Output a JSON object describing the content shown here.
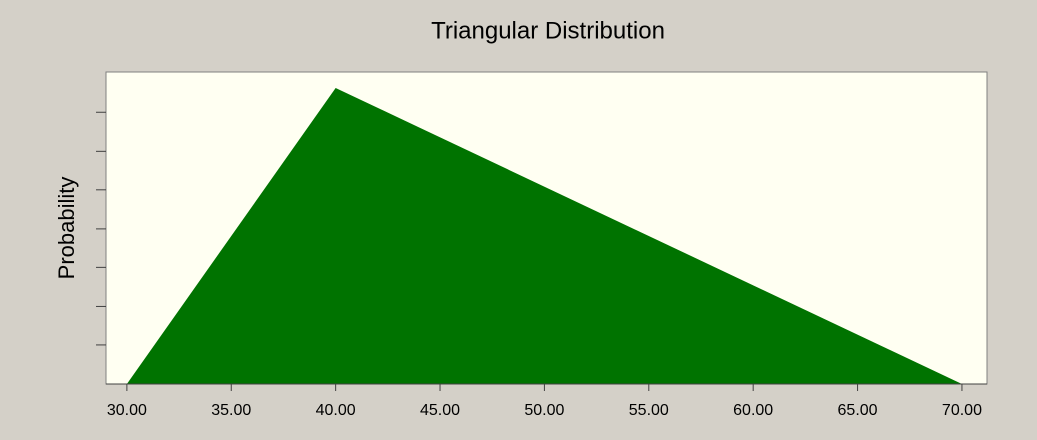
{
  "chart_data": {
    "type": "area",
    "title": "Triangular Distribution",
    "ylabel": "Probability",
    "x": [
      30,
      40,
      70
    ],
    "values": [
      0,
      0.05,
      0
    ],
    "color": "#007300",
    "xlim": [
      29,
      71.2
    ],
    "xticks": [
      {
        "value": 30,
        "label": "30.00"
      },
      {
        "value": 35,
        "label": "35.00"
      },
      {
        "value": 40,
        "label": "40.00"
      },
      {
        "value": 45,
        "label": "45.00"
      },
      {
        "value": 50,
        "label": "50.00"
      },
      {
        "value": 55,
        "label": "55.00"
      },
      {
        "value": 60,
        "label": "60.00"
      },
      {
        "value": 65,
        "label": "65.00"
      },
      {
        "value": 70,
        "label": "70.00"
      }
    ],
    "ylim": [
      0,
      0.0527
    ],
    "yticks": [
      0.0066,
      0.0131,
      0.0197,
      0.0262,
      0.0328,
      0.0393,
      0.0459
    ]
  }
}
